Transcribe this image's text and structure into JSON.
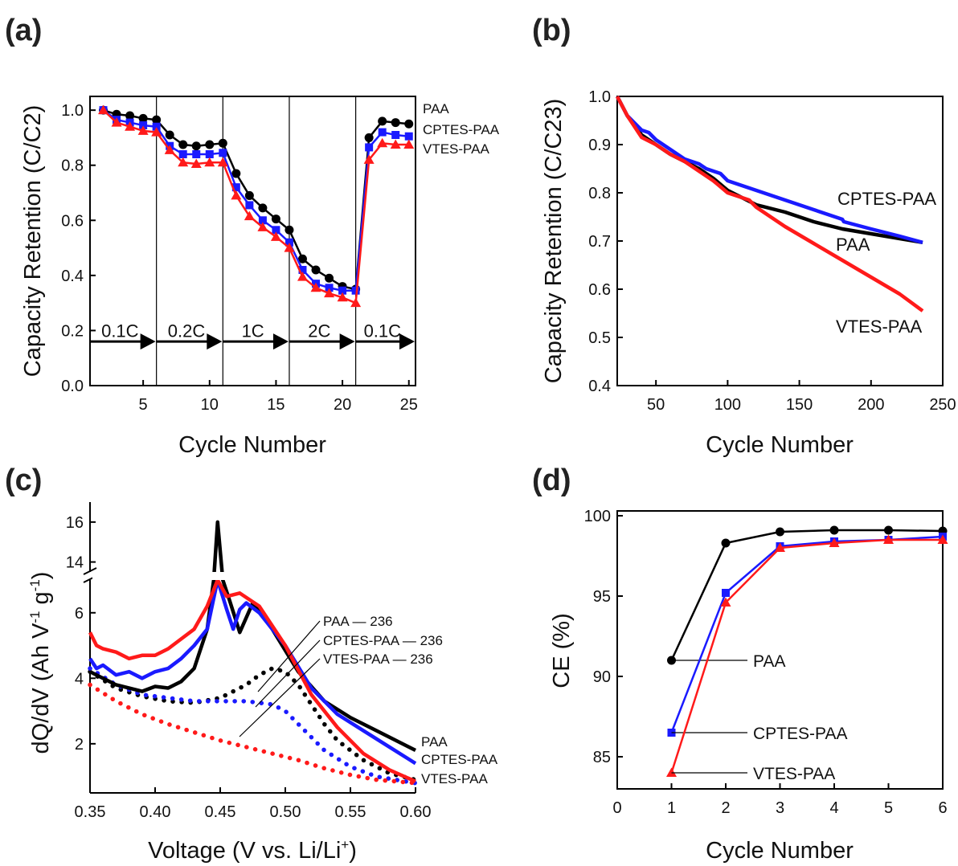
{
  "chart_data": [
    {
      "panel": "(a)",
      "type": "line",
      "xlabel": "Cycle Number",
      "ylabel": "Capacity Retention (C/C2)",
      "xlim": [
        1,
        25.5
      ],
      "ylim": [
        0,
        1.05
      ],
      "xticks": [
        5,
        10,
        15,
        20,
        25
      ],
      "yticks": [
        0.0,
        0.2,
        0.4,
        0.6,
        0.8,
        1.0
      ],
      "rate_regions": [
        {
          "label": "0.1C",
          "start": 1,
          "end": 6
        },
        {
          "label": "0.2C",
          "start": 6,
          "end": 11
        },
        {
          "label": "1C",
          "start": 11,
          "end": 16
        },
        {
          "label": "2C",
          "start": 16,
          "end": 21
        },
        {
          "label": "0.1C",
          "start": 21,
          "end": 25.5
        }
      ],
      "series": [
        {
          "name": "PAA",
          "color": "#000000",
          "marker": "circle",
          "x": [
            2,
            3,
            4,
            5,
            6,
            7,
            8,
            9,
            10,
            11,
            12,
            13,
            14,
            15,
            16,
            17,
            18,
            19,
            20,
            21,
            22,
            23,
            24,
            25
          ],
          "y": [
            1.0,
            0.985,
            0.98,
            0.97,
            0.965,
            0.91,
            0.875,
            0.87,
            0.875,
            0.88,
            0.77,
            0.69,
            0.645,
            0.605,
            0.565,
            0.46,
            0.42,
            0.39,
            0.36,
            0.35,
            0.9,
            0.96,
            0.955,
            0.95
          ]
        },
        {
          "name": "CPTES-PAA",
          "color": "#1a1aff",
          "marker": "square",
          "x": [
            2,
            3,
            4,
            5,
            6,
            7,
            8,
            9,
            10,
            11,
            12,
            13,
            14,
            15,
            16,
            17,
            18,
            19,
            20,
            21,
            22,
            23,
            24,
            25
          ],
          "y": [
            1.0,
            0.965,
            0.955,
            0.945,
            0.94,
            0.87,
            0.84,
            0.84,
            0.84,
            0.845,
            0.72,
            0.655,
            0.6,
            0.565,
            0.52,
            0.42,
            0.37,
            0.355,
            0.345,
            0.345,
            0.865,
            0.92,
            0.91,
            0.905
          ]
        },
        {
          "name": "VTES-PAA",
          "color": "#ff1a1a",
          "marker": "triangle",
          "x": [
            2,
            3,
            4,
            5,
            6,
            7,
            8,
            9,
            10,
            11,
            12,
            13,
            14,
            15,
            16,
            17,
            18,
            19,
            20,
            21,
            22,
            23,
            24,
            25
          ],
          "y": [
            1.0,
            0.955,
            0.94,
            0.925,
            0.92,
            0.855,
            0.81,
            0.805,
            0.81,
            0.81,
            0.69,
            0.615,
            0.575,
            0.54,
            0.5,
            0.395,
            0.355,
            0.335,
            0.32,
            0.3,
            0.82,
            0.88,
            0.875,
            0.875
          ]
        }
      ]
    },
    {
      "panel": "(b)",
      "type": "line",
      "xlabel": "Cycle Number",
      "ylabel": "Capacity Retention (C/C23)",
      "xlim": [
        23,
        250
      ],
      "ylim": [
        0.4,
        1.0
      ],
      "xticks": [
        50,
        100,
        150,
        200,
        250
      ],
      "yticks": [
        0.4,
        0.5,
        0.6,
        0.7,
        0.8,
        0.9,
        1.0
      ],
      "series": [
        {
          "name": "PAA",
          "color": "#000000",
          "x": [
            23,
            30,
            40,
            50,
            60,
            70,
            80,
            90,
            100,
            110,
            120,
            140,
            160,
            180,
            200,
            220,
            236
          ],
          "y": [
            1.0,
            0.96,
            0.92,
            0.9,
            0.88,
            0.865,
            0.85,
            0.83,
            0.805,
            0.79,
            0.775,
            0.76,
            0.74,
            0.725,
            0.715,
            0.705,
            0.697
          ]
        },
        {
          "name": "CPTES-PAA",
          "color": "#1a1aff",
          "x": [
            23,
            30,
            40,
            45,
            50,
            60,
            70,
            80,
            85,
            90,
            95,
            100,
            110,
            120,
            140,
            160,
            180,
            181,
            200,
            220,
            236
          ],
          "y": [
            1.0,
            0.96,
            0.93,
            0.925,
            0.91,
            0.89,
            0.87,
            0.86,
            0.85,
            0.845,
            0.84,
            0.825,
            0.815,
            0.805,
            0.785,
            0.765,
            0.745,
            0.74,
            0.725,
            0.71,
            0.697
          ]
        },
        {
          "name": "VTES-PAA",
          "color": "#ff1a1a",
          "x": [
            23,
            30,
            40,
            50,
            60,
            70,
            80,
            90,
            100,
            110,
            115,
            120,
            140,
            160,
            180,
            200,
            220,
            236
          ],
          "y": [
            1.0,
            0.96,
            0.915,
            0.9,
            0.88,
            0.865,
            0.845,
            0.825,
            0.8,
            0.79,
            0.785,
            0.77,
            0.73,
            0.695,
            0.66,
            0.625,
            0.59,
            0.555
          ]
        }
      ],
      "labels": [
        "CPTES-PAA",
        "PAA",
        "VTES-PAA"
      ]
    },
    {
      "panel": "(c)",
      "type": "line",
      "xlabel": "Voltage (V vs. Li/Li+)",
      "ylabel": "dQ/dV (Ah V-1 g-1)",
      "xlim": [
        0.35,
        0.6
      ],
      "ylim_lower": [
        0.5,
        7.0
      ],
      "ylim_upper": [
        13.5,
        17
      ],
      "xticks": [
        "0.35",
        "0.40",
        "0.45",
        "0.50",
        "0.55",
        "0.60"
      ],
      "yticks": [
        2,
        4,
        6,
        14,
        16
      ],
      "legend": [
        "PAA — 236",
        "CPTES-PAA — 236",
        "VTES-PAA — 236"
      ],
      "end_labels": [
        "PAA",
        "CPTES-PAA",
        "VTES-PAA"
      ],
      "series": [
        {
          "name": "PAA",
          "style": "solid",
          "color": "#000000",
          "x": [
            0.35,
            0.37,
            0.39,
            0.4,
            0.41,
            0.42,
            0.43,
            0.44,
            0.445,
            0.448,
            0.452,
            0.457,
            0.465,
            0.475,
            0.49,
            0.51,
            0.53,
            0.55,
            0.57,
            0.6
          ],
          "y": [
            4.2,
            3.8,
            3.6,
            3.75,
            3.7,
            3.9,
            4.3,
            5.5,
            8.0,
            16.0,
            7.0,
            6.4,
            5.4,
            6.3,
            5.5,
            4.2,
            3.3,
            2.8,
            2.4,
            1.8
          ]
        },
        {
          "name": "CPTES-PAA",
          "style": "solid",
          "color": "#1a1aff",
          "x": [
            0.35,
            0.355,
            0.36,
            0.37,
            0.38,
            0.39,
            0.4,
            0.41,
            0.42,
            0.43,
            0.44,
            0.448,
            0.455,
            0.46,
            0.465,
            0.47,
            0.48,
            0.5,
            0.52,
            0.54,
            0.56,
            0.58,
            0.6
          ],
          "y": [
            4.6,
            4.3,
            4.4,
            4.1,
            4.2,
            4.0,
            4.2,
            4.3,
            4.6,
            5.0,
            5.5,
            7.0,
            6.1,
            5.5,
            6.1,
            6.3,
            6.0,
            5.0,
            3.7,
            2.9,
            2.4,
            1.9,
            1.4
          ]
        },
        {
          "name": "VTES-PAA",
          "style": "solid",
          "color": "#ff1a1a",
          "x": [
            0.35,
            0.355,
            0.36,
            0.37,
            0.38,
            0.39,
            0.4,
            0.41,
            0.42,
            0.43,
            0.44,
            0.448,
            0.455,
            0.465,
            0.48,
            0.5,
            0.52,
            0.54,
            0.56,
            0.58,
            0.6
          ],
          "y": [
            5.4,
            5.0,
            4.9,
            4.8,
            4.6,
            4.7,
            4.7,
            4.9,
            5.2,
            5.5,
            6.2,
            7.0,
            6.5,
            6.6,
            6.2,
            5.0,
            3.5,
            2.5,
            1.7,
            1.2,
            0.85
          ]
        },
        {
          "name": "PAA — 236",
          "style": "dotted",
          "color": "#000000",
          "x": [
            0.35,
            0.37,
            0.39,
            0.41,
            0.43,
            0.45,
            0.47,
            0.48,
            0.49,
            0.5,
            0.51,
            0.52,
            0.53,
            0.54,
            0.56,
            0.58,
            0.6
          ],
          "y": [
            4.2,
            3.7,
            3.45,
            3.3,
            3.25,
            3.4,
            3.8,
            4.1,
            4.3,
            4.2,
            3.8,
            3.2,
            2.6,
            2.1,
            1.5,
            1.1,
            0.9
          ]
        },
        {
          "name": "CPTES-PAA — 236",
          "style": "dotted",
          "color": "#1a1aff",
          "x": [
            0.35,
            0.37,
            0.39,
            0.41,
            0.43,
            0.45,
            0.47,
            0.49,
            0.5,
            0.51,
            0.52,
            0.53,
            0.55,
            0.57,
            0.6
          ],
          "y": [
            4.3,
            3.8,
            3.5,
            3.4,
            3.3,
            3.3,
            3.3,
            3.2,
            3.0,
            2.6,
            2.2,
            1.8,
            1.3,
            1.0,
            0.8
          ]
        },
        {
          "name": "VTES-PAA — 236",
          "style": "dotted",
          "color": "#ff1a1a",
          "x": [
            0.35,
            0.37,
            0.39,
            0.41,
            0.43,
            0.45,
            0.47,
            0.49,
            0.51,
            0.53,
            0.55,
            0.57,
            0.6
          ],
          "y": [
            3.8,
            3.3,
            2.9,
            2.6,
            2.35,
            2.1,
            1.9,
            1.7,
            1.5,
            1.25,
            1.05,
            0.9,
            0.8
          ]
        }
      ]
    },
    {
      "panel": "(d)",
      "type": "line",
      "xlabel": "Cycle Number",
      "ylabel": "CE (%)",
      "xlim": [
        0,
        6
      ],
      "ylim": [
        83,
        100.3
      ],
      "xticks": [
        0,
        1,
        2,
        3,
        4,
        5,
        6
      ],
      "yticks": [
        85,
        90,
        95,
        100
      ],
      "series": [
        {
          "name": "PAA",
          "color": "#000000",
          "marker": "circle",
          "x": [
            1,
            2,
            3,
            4,
            5,
            6
          ],
          "y": [
            91.0,
            98.3,
            99.0,
            99.1,
            99.1,
            99.05
          ]
        },
        {
          "name": "CPTES-PAA",
          "color": "#1a1aff",
          "marker": "square",
          "x": [
            1,
            2,
            3,
            4,
            5,
            6
          ],
          "y": [
            86.5,
            95.2,
            98.1,
            98.4,
            98.5,
            98.7
          ]
        },
        {
          "name": "VTES-PAA",
          "color": "#ff1a1a",
          "marker": "triangle",
          "x": [
            1,
            2,
            3,
            4,
            5,
            6
          ],
          "y": [
            84.0,
            94.6,
            98.0,
            98.3,
            98.5,
            98.5
          ]
        }
      ]
    }
  ],
  "panel_labels": [
    "(a)",
    "(b)",
    "(c)",
    "(d)"
  ]
}
